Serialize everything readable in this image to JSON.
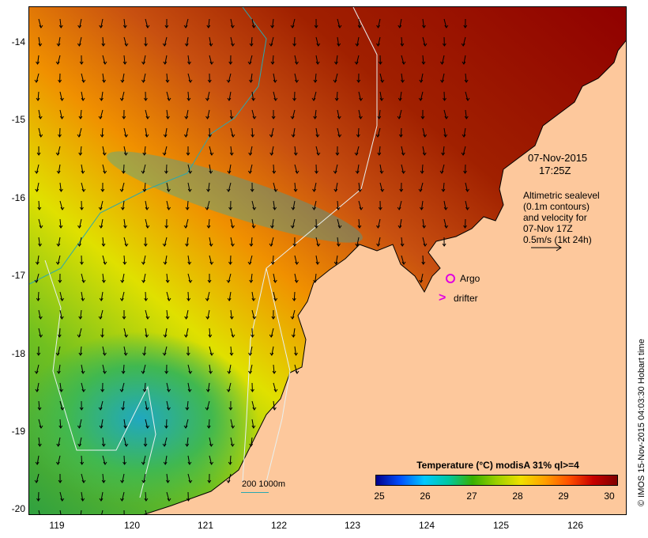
{
  "map": {
    "date": "07-Nov-2015",
    "time": "17:25Z",
    "info_lines": [
      "Altimetric sealevel",
      "(0.1m contours)",
      "and velocity for",
      "07-Nov 17Z",
      "0.5m/s (1kt 24h)"
    ],
    "legend_argo": "Argo",
    "legend_drifter": "drifter",
    "drifter_symbol": ">",
    "bathymetry_label": "200  1000m",
    "credit": "© IMOS 15-Nov-2015 04:03:30 Hobart time",
    "colors": {
      "land": "#fdc89c",
      "contour": "#2aa8b0",
      "markers": "#e000e0"
    }
  },
  "axes": {
    "lat_ticks": [
      "-14",
      "-15",
      "-16",
      "-17",
      "-18",
      "-19",
      "-20"
    ],
    "lon_ticks": [
      "119",
      "120",
      "121",
      "122",
      "123",
      "124",
      "125",
      "126"
    ]
  },
  "colorbar": {
    "title": "Temperature (°C) modisA 31% ql>=4",
    "ticks": [
      "25",
      "26",
      "27",
      "28",
      "29",
      "30"
    ]
  }
}
